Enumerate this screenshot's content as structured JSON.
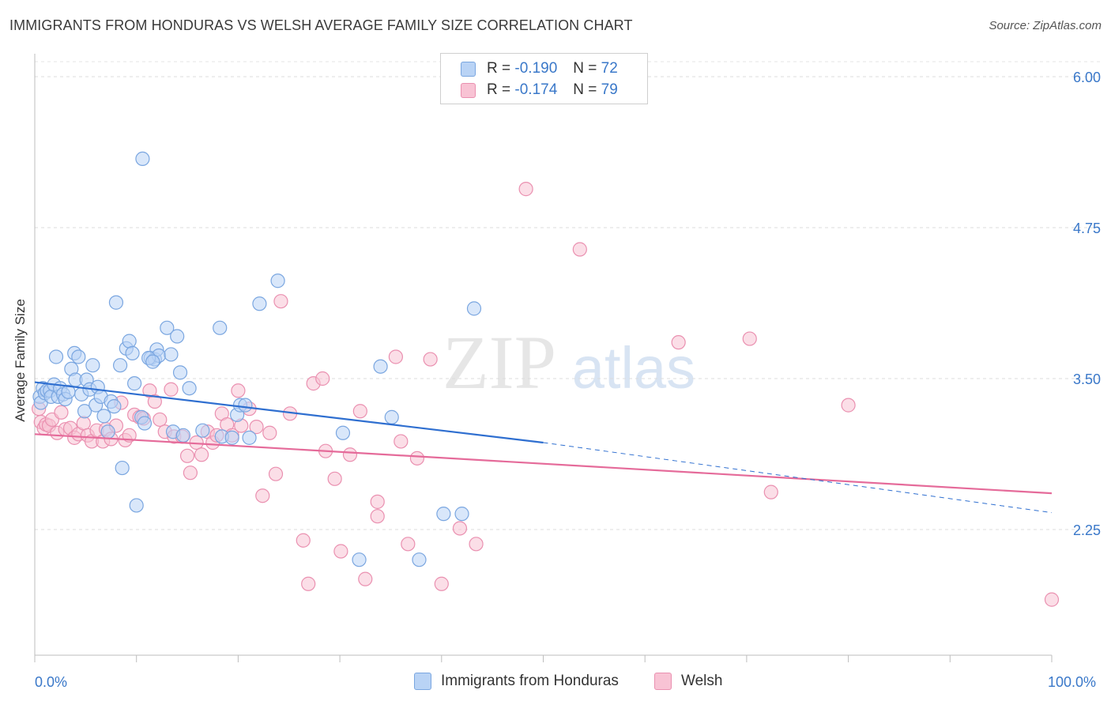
{
  "title": "IMMIGRANTS FROM HONDURAS VS WELSH AVERAGE FAMILY SIZE CORRELATION CHART",
  "source": "Source: ZipAtlas.com",
  "watermark": {
    "zip": "ZIP",
    "atlas": "atlas"
  },
  "legend": {
    "r_label": "R =",
    "n_label": "N =",
    "rows": [
      {
        "r": "-0.190",
        "n": "72"
      },
      {
        "r": "-0.174",
        "n": "79"
      }
    ]
  },
  "x_axis": {
    "min_label": "0.0%",
    "max_label": "100.0%"
  },
  "colors": {
    "series0_fill": "#b9d3f5",
    "series0_stroke": "#7aa6e0",
    "series0_line": "#2f6fd0",
    "series1_fill": "#f8c3d4",
    "series1_stroke": "#ea90b0",
    "series1_line": "#e56b9a",
    "tick_label": "#3a78c9"
  },
  "chart_data": {
    "type": "scatter",
    "title": "IMMIGRANTS FROM HONDURAS VS WELSH AVERAGE FAMILY SIZE CORRELATION CHART",
    "xlabel": "",
    "ylabel": "Average Family Size",
    "xlim": [
      0,
      100
    ],
    "ylim": [
      1.0,
      6.2
    ],
    "y_ticks": [
      2.25,
      3.5,
      4.75,
      6.0
    ],
    "y_tick_labels": [
      "2.25",
      "3.50",
      "4.75",
      "6.00"
    ],
    "grid": true,
    "legend_position": "top-center",
    "series": [
      {
        "name": "Immigrants from Honduras",
        "r": -0.19,
        "n": 72,
        "trend": {
          "x": [
            0,
            50
          ],
          "y": [
            3.47,
            2.97
          ],
          "dashed_to": [
            100,
            2.39
          ]
        },
        "points": [
          [
            0.5,
            3.35
          ],
          [
            0.6,
            3.3
          ],
          [
            0.8,
            3.42
          ],
          [
            1.0,
            3.38
          ],
          [
            1.2,
            3.4
          ],
          [
            1.5,
            3.4
          ],
          [
            1.6,
            3.35
          ],
          [
            1.9,
            3.45
          ],
          [
            2.1,
            3.68
          ],
          [
            2.3,
            3.35
          ],
          [
            2.5,
            3.42
          ],
          [
            2.8,
            3.37
          ],
          [
            3.0,
            3.33
          ],
          [
            3.3,
            3.39
          ],
          [
            3.6,
            3.58
          ],
          [
            3.9,
            3.71
          ],
          [
            4.0,
            3.49
          ],
          [
            4.3,
            3.68
          ],
          [
            4.6,
            3.37
          ],
          [
            4.9,
            3.23
          ],
          [
            5.1,
            3.49
          ],
          [
            5.4,
            3.41
          ],
          [
            5.7,
            3.61
          ],
          [
            6.0,
            3.28
          ],
          [
            6.2,
            3.43
          ],
          [
            6.5,
            3.35
          ],
          [
            6.8,
            3.19
          ],
          [
            7.2,
            3.06
          ],
          [
            7.5,
            3.31
          ],
          [
            7.8,
            3.27
          ],
          [
            8.0,
            4.13
          ],
          [
            8.4,
            3.61
          ],
          [
            8.6,
            2.76
          ],
          [
            9.0,
            3.75
          ],
          [
            9.3,
            3.81
          ],
          [
            9.6,
            3.71
          ],
          [
            9.8,
            3.46
          ],
          [
            10.0,
            2.45
          ],
          [
            10.5,
            3.18
          ],
          [
            10.8,
            3.13
          ],
          [
            11.4,
            3.67
          ],
          [
            11.8,
            3.66
          ],
          [
            12.0,
            3.74
          ],
          [
            12.2,
            3.69
          ],
          [
            10.6,
            5.32
          ],
          [
            11.2,
            3.67
          ],
          [
            11.6,
            3.64
          ],
          [
            13.0,
            3.92
          ],
          [
            13.4,
            3.7
          ],
          [
            13.6,
            3.06
          ],
          [
            14.0,
            3.85
          ],
          [
            14.3,
            3.55
          ],
          [
            14.6,
            3.03
          ],
          [
            15.2,
            3.42
          ],
          [
            16.5,
            3.07
          ],
          [
            18.2,
            3.92
          ],
          [
            18.4,
            3.02
          ],
          [
            19.4,
            3.01
          ],
          [
            19.9,
            3.2
          ],
          [
            20.2,
            3.28
          ],
          [
            20.7,
            3.28
          ],
          [
            21.1,
            3.01
          ],
          [
            22.1,
            4.12
          ],
          [
            23.9,
            4.31
          ],
          [
            30.3,
            3.05
          ],
          [
            31.9,
            2.0
          ],
          [
            34.0,
            3.6
          ],
          [
            35.1,
            3.18
          ],
          [
            37.8,
            2.0
          ],
          [
            40.2,
            2.38
          ],
          [
            42.0,
            2.38
          ],
          [
            43.2,
            4.08
          ]
        ]
      },
      {
        "name": "Welsh",
        "r": -0.174,
        "n": 79,
        "trend": {
          "x": [
            0,
            100
          ],
          "y": [
            3.04,
            2.55
          ]
        },
        "points": [
          [
            0.4,
            3.25
          ],
          [
            0.6,
            3.14
          ],
          [
            0.9,
            3.09
          ],
          [
            1.1,
            3.12
          ],
          [
            1.4,
            3.11
          ],
          [
            1.7,
            3.16
          ],
          [
            2.2,
            3.05
          ],
          [
            2.6,
            3.22
          ],
          [
            3.0,
            3.08
          ],
          [
            3.5,
            3.09
          ],
          [
            3.9,
            3.01
          ],
          [
            4.3,
            3.04
          ],
          [
            4.8,
            3.13
          ],
          [
            5.2,
            3.03
          ],
          [
            5.6,
            2.98
          ],
          [
            6.1,
            3.07
          ],
          [
            6.7,
            2.98
          ],
          [
            7.0,
            3.08
          ],
          [
            7.5,
            3.0
          ],
          [
            8.0,
            3.11
          ],
          [
            8.5,
            3.3
          ],
          [
            8.9,
            2.99
          ],
          [
            9.3,
            3.03
          ],
          [
            9.8,
            3.2
          ],
          [
            10.3,
            3.18
          ],
          [
            10.7,
            3.17
          ],
          [
            11.3,
            3.4
          ],
          [
            11.8,
            3.31
          ],
          [
            12.3,
            3.16
          ],
          [
            12.8,
            3.06
          ],
          [
            13.4,
            3.41
          ],
          [
            13.7,
            3.02
          ],
          [
            14.5,
            3.02
          ],
          [
            15.0,
            2.86
          ],
          [
            15.3,
            2.72
          ],
          [
            15.9,
            2.97
          ],
          [
            16.4,
            2.87
          ],
          [
            17.0,
            3.06
          ],
          [
            17.5,
            2.97
          ],
          [
            17.9,
            3.03
          ],
          [
            18.4,
            3.21
          ],
          [
            18.9,
            3.12
          ],
          [
            19.4,
            3.03
          ],
          [
            20.0,
            3.4
          ],
          [
            20.3,
            3.11
          ],
          [
            21.1,
            3.25
          ],
          [
            21.8,
            3.1
          ],
          [
            22.4,
            2.53
          ],
          [
            23.1,
            3.05
          ],
          [
            23.7,
            2.71
          ],
          [
            24.2,
            4.14
          ],
          [
            25.1,
            3.21
          ],
          [
            26.4,
            2.16
          ],
          [
            26.9,
            1.8
          ],
          [
            27.4,
            3.46
          ],
          [
            28.3,
            3.5
          ],
          [
            28.6,
            2.9
          ],
          [
            29.5,
            2.67
          ],
          [
            30.1,
            2.07
          ],
          [
            31.0,
            2.87
          ],
          [
            32.0,
            3.23
          ],
          [
            32.5,
            1.84
          ],
          [
            33.7,
            2.48
          ],
          [
            33.7,
            2.36
          ],
          [
            35.5,
            3.68
          ],
          [
            36.0,
            2.98
          ],
          [
            36.7,
            2.13
          ],
          [
            37.6,
            2.84
          ],
          [
            38.9,
            3.66
          ],
          [
            40.0,
            1.8
          ],
          [
            41.8,
            2.26
          ],
          [
            43.4,
            2.13
          ],
          [
            48.3,
            5.07
          ],
          [
            53.6,
            4.57
          ],
          [
            63.3,
            3.8
          ],
          [
            70.3,
            3.83
          ],
          [
            72.4,
            2.56
          ],
          [
            80.0,
            3.28
          ],
          [
            100.0,
            1.67
          ]
        ]
      }
    ]
  }
}
